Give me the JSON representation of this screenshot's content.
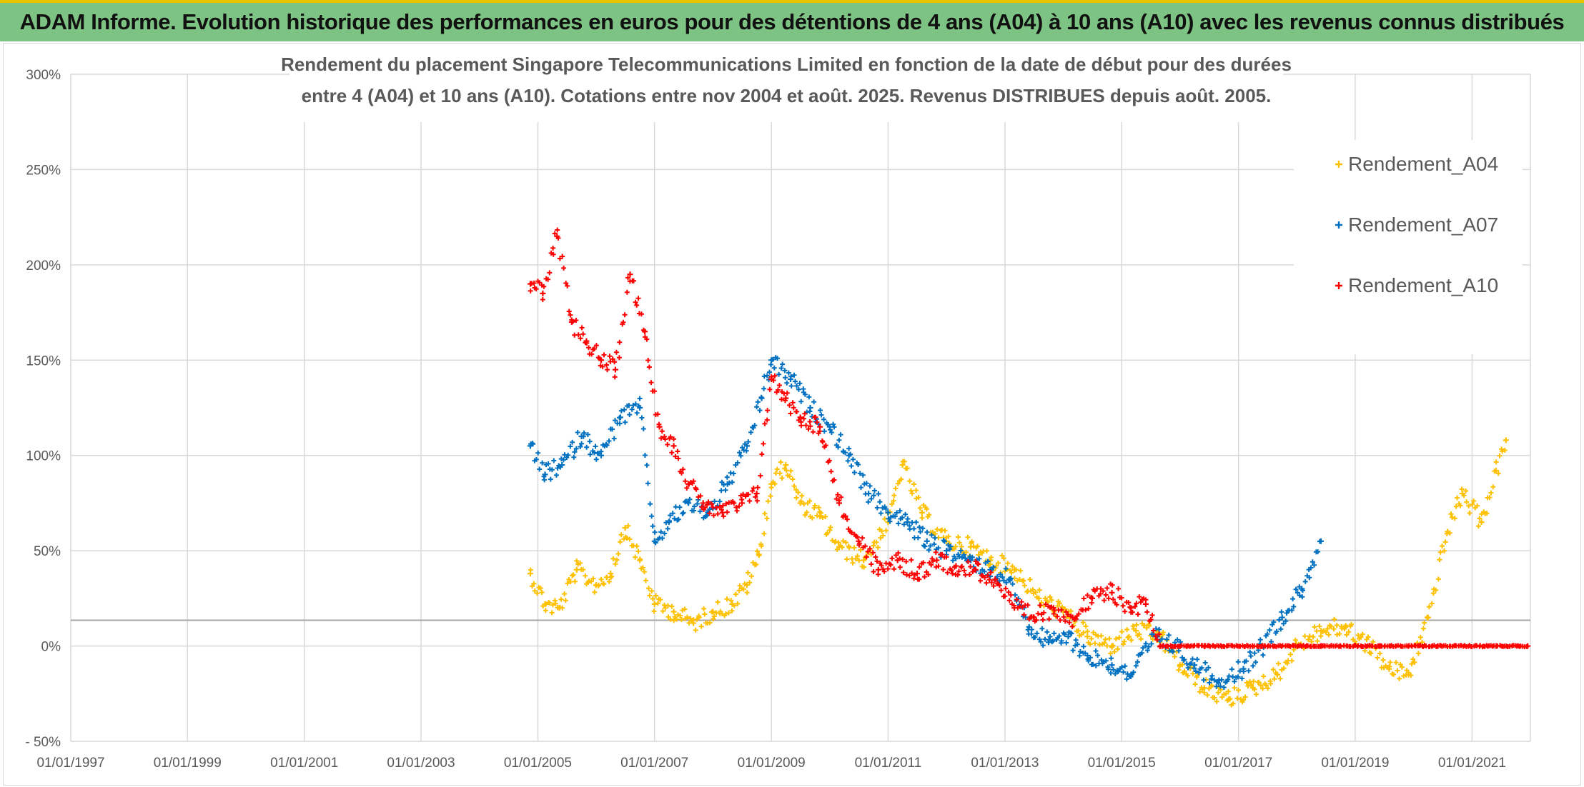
{
  "header": {
    "title": "ADAM Informe. Evolution historique des performances en euros pour des détentions de 4 ans (A04) à 10 ans (A10) avec les revenus connus distribués"
  },
  "chart_data": {
    "type": "scatter",
    "title_lines": [
      "Rendement du placement Singapore Telecommunications Limited en fonction de la date de début pour des durées",
      "entre 4 (A04) et 10 ans (A10). Cotations entre nov 2004 et août. 2025. Revenus DISTRIBUES depuis août. 2005."
    ],
    "xlabel": "",
    "ylabel": "",
    "x_ticks": [
      "01/01/1997",
      "01/01/1999",
      "01/01/2001",
      "01/01/2003",
      "01/01/2005",
      "01/01/2007",
      "01/01/2009",
      "01/01/2011",
      "01/01/2013",
      "01/01/2015",
      "01/01/2017",
      "01/01/2019",
      "01/01/2021"
    ],
    "xlim": [
      "1997-01-01",
      "2022-01-01"
    ],
    "y_ticks": [
      "300%",
      "250%",
      "200%",
      "150%",
      "100%",
      "50%",
      "0%",
      "- 50%"
    ],
    "ylim": [
      -50,
      300
    ],
    "reference_line_y": 13.5,
    "grid": true,
    "legend_position": "top-right",
    "marker": "plus",
    "series": [
      {
        "name": "Rendement_A04",
        "color": "#ffc000",
        "points": [
          [
            "2004-11-15",
            38
          ],
          [
            "2005-02-15",
            22
          ],
          [
            "2005-05-15",
            20
          ],
          [
            "2005-09-01",
            40
          ],
          [
            "2006-01-01",
            32
          ],
          [
            "2006-04-01",
            38
          ],
          [
            "2006-07-01",
            62
          ],
          [
            "2006-10-01",
            45
          ],
          [
            "2007-01-01",
            22
          ],
          [
            "2007-05-01",
            18
          ],
          [
            "2007-09-01",
            12
          ],
          [
            "2008-01-01",
            18
          ],
          [
            "2008-05-01",
            22
          ],
          [
            "2008-08-01",
            32
          ],
          [
            "2008-10-15",
            48
          ],
          [
            "2009-01-01",
            85
          ],
          [
            "2009-04-01",
            95
          ],
          [
            "2009-07-01",
            75
          ],
          [
            "2009-11-01",
            68
          ],
          [
            "2010-03-01",
            52
          ],
          [
            "2010-08-01",
            45
          ],
          [
            "2011-01-01",
            65
          ],
          [
            "2011-04-01",
            95
          ],
          [
            "2011-08-01",
            70
          ],
          [
            "2012-01-01",
            55
          ],
          [
            "2012-06-01",
            52
          ],
          [
            "2012-10-01",
            45
          ],
          [
            "2013-03-01",
            40
          ],
          [
            "2013-08-01",
            25
          ],
          [
            "2014-01-01",
            18
          ],
          [
            "2014-06-01",
            5
          ],
          [
            "2014-11-01",
            0
          ],
          [
            "2015-04-01",
            8
          ],
          [
            "2015-09-01",
            5
          ],
          [
            "2016-01-01",
            -10
          ],
          [
            "2016-06-01",
            -22
          ],
          [
            "2016-11-01",
            -28
          ],
          [
            "2017-04-01",
            -22
          ],
          [
            "2017-09-01",
            -15
          ],
          [
            "2018-01-01",
            0
          ],
          [
            "2018-06-01",
            8
          ],
          [
            "2018-11-01",
            10
          ],
          [
            "2019-04-01",
            0
          ],
          [
            "2019-08-01",
            -12
          ],
          [
            "2019-12-01",
            -15
          ],
          [
            "2020-04-01",
            15
          ],
          [
            "2020-08-01",
            60
          ],
          [
            "2020-11-01",
            80
          ],
          [
            "2021-03-01",
            65
          ],
          [
            "2021-06-01",
            92
          ],
          [
            "2021-08-01",
            108
          ]
        ]
      },
      {
        "name": "Rendement_A07",
        "color": "#0070c0",
        "points": [
          [
            "2004-11-15",
            105
          ],
          [
            "2005-02-15",
            90
          ],
          [
            "2005-06-01",
            95
          ],
          [
            "2005-10-01",
            110
          ],
          [
            "2006-02-01",
            100
          ],
          [
            "2006-06-01",
            120
          ],
          [
            "2006-10-01",
            125
          ],
          [
            "2007-01-01",
            55
          ],
          [
            "2007-04-01",
            65
          ],
          [
            "2007-08-01",
            75
          ],
          [
            "2007-12-01",
            70
          ],
          [
            "2008-04-01",
            85
          ],
          [
            "2008-08-01",
            105
          ],
          [
            "2008-11-01",
            130
          ],
          [
            "2009-01-01",
            150
          ],
          [
            "2009-05-01",
            140
          ],
          [
            "2009-09-01",
            125
          ],
          [
            "2010-01-01",
            115
          ],
          [
            "2010-05-01",
            100
          ],
          [
            "2010-09-01",
            80
          ],
          [
            "2011-01-01",
            70
          ],
          [
            "2011-05-01",
            65
          ],
          [
            "2011-09-01",
            55
          ],
          [
            "2012-01-01",
            50
          ],
          [
            "2012-06-01",
            45
          ],
          [
            "2012-10-01",
            40
          ],
          [
            "2013-02-01",
            35
          ],
          [
            "2013-06-01",
            10
          ],
          [
            "2013-10-01",
            2
          ],
          [
            "2014-02-01",
            5
          ],
          [
            "2014-06-01",
            -5
          ],
          [
            "2014-11-01",
            -10
          ],
          [
            "2015-03-01",
            -15
          ],
          [
            "2015-08-01",
            5
          ],
          [
            "2015-12-01",
            0
          ],
          [
            "2016-04-01",
            -10
          ],
          [
            "2016-09-01",
            -18
          ],
          [
            "2017-02-01",
            -12
          ],
          [
            "2017-06-01",
            0
          ],
          [
            "2017-10-01",
            15
          ],
          [
            "2018-02-01",
            30
          ],
          [
            "2018-06-01",
            55
          ]
        ]
      },
      {
        "name": "Rendement_A10",
        "color": "#ff0000",
        "points": [
          [
            "2004-11-15",
            190
          ],
          [
            "2005-02-01",
            185
          ],
          [
            "2005-05-01",
            215
          ],
          [
            "2005-08-01",
            170
          ],
          [
            "2005-11-01",
            160
          ],
          [
            "2006-02-01",
            150
          ],
          [
            "2006-05-01",
            145
          ],
          [
            "2006-08-01",
            195
          ],
          [
            "2006-11-01",
            165
          ],
          [
            "2007-02-01",
            115
          ],
          [
            "2007-05-01",
            105
          ],
          [
            "2007-08-01",
            85
          ],
          [
            "2007-11-01",
            75
          ],
          [
            "2008-03-01",
            70
          ],
          [
            "2008-07-01",
            75
          ],
          [
            "2008-10-01",
            80
          ],
          [
            "2009-01-01",
            140
          ],
          [
            "2009-04-01",
            130
          ],
          [
            "2009-07-01",
            120
          ],
          [
            "2009-11-01",
            115
          ],
          [
            "2010-03-01",
            75
          ],
          [
            "2010-07-01",
            55
          ],
          [
            "2010-11-01",
            40
          ],
          [
            "2011-03-01",
            45
          ],
          [
            "2011-07-01",
            38
          ],
          [
            "2011-11-01",
            45
          ],
          [
            "2012-03-01",
            42
          ],
          [
            "2012-07-01",
            40
          ],
          [
            "2012-11-01",
            35
          ],
          [
            "2013-03-01",
            20
          ],
          [
            "2013-07-01",
            15
          ],
          [
            "2013-11-01",
            20
          ],
          [
            "2014-03-01",
            15
          ],
          [
            "2014-07-01",
            25
          ],
          [
            "2014-11-01",
            28
          ],
          [
            "2015-03-01",
            20
          ],
          [
            "2015-06-01",
            22
          ],
          [
            "2015-09-01",
            0
          ],
          [
            "2016-06-01",
            0
          ],
          [
            "2017-06-01",
            0
          ],
          [
            "2018-06-01",
            0
          ],
          [
            "2019-06-01",
            0
          ],
          [
            "2020-06-01",
            0
          ],
          [
            "2021-06-01",
            0
          ],
          [
            "2021-12-15",
            0
          ]
        ]
      }
    ]
  }
}
